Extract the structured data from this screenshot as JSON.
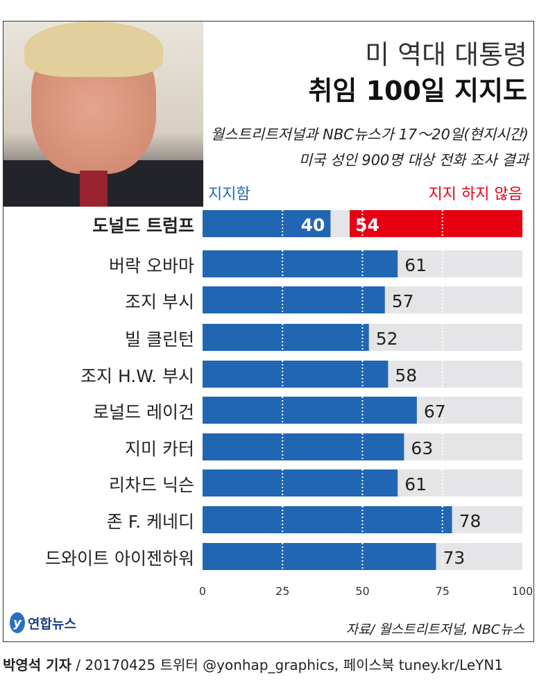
{
  "title_line1": "미 역대 대통령",
  "title_line2": "취임 100일 지지도",
  "subtitle_line1": "월스트리트저널과 NBC뉴스가 17～20일(현지시간)",
  "subtitle_line2": "미국 성인 900명 대상 전화 조사 결과",
  "source": "자료/ 월스트리트저널, NBC뉴스",
  "logo_text": "연합뉴스",
  "credit_name": "박영석 기자",
  "credit_rest": " / 20170425  트위터 @yonhap_graphics, 페이스북 tuney.kr/LeYN1",
  "colors": {
    "approve": "#2166b3",
    "disapprove": "#e60012",
    "track": "#e5e5e7"
  },
  "chart_data": {
    "type": "bar",
    "orientation": "horizontal",
    "xlim": [
      0,
      100
    ],
    "x_ticks": [
      "0",
      "25",
      "50",
      "75",
      "100"
    ],
    "grid": "dotted vertical at 25, 50, 75",
    "legend": {
      "approve": "지지함",
      "disapprove": "지지 하지 않음"
    },
    "categories": [
      "도널드 트럼프",
      "버락 오바마",
      "조지 부시",
      "빌 클린턴",
      "조지 H.W. 부시",
      "로널드 레이건",
      "지미 카터",
      "리차드 닉슨",
      "존 F. 케네디",
      "드와이트 아이젠하워"
    ],
    "series": [
      {
        "name": "지지함",
        "values": [
          40,
          61,
          57,
          52,
          58,
          67,
          63,
          61,
          78,
          73
        ]
      },
      {
        "name": "지지 하지 않음",
        "values": [
          54,
          null,
          null,
          null,
          null,
          null,
          null,
          null,
          null,
          null
        ]
      }
    ]
  }
}
